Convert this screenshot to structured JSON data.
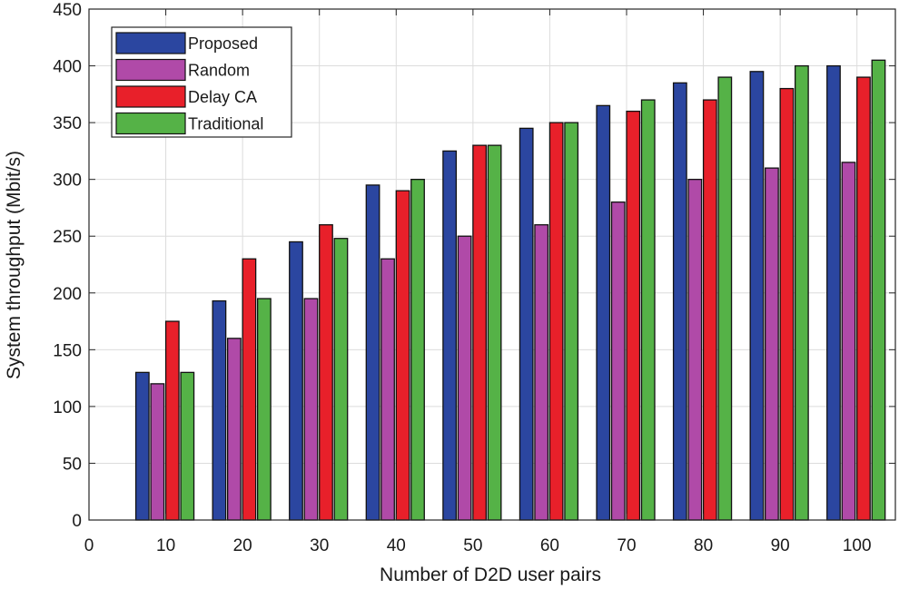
{
  "chart_data": {
    "type": "bar",
    "title": "",
    "xlabel": "Number of D2D user pairs",
    "ylabel": "System throughput (Mbit/s)",
    "categories": [
      "10",
      "20",
      "30",
      "40",
      "50",
      "60",
      "70",
      "80",
      "90",
      "100"
    ],
    "x_values": [
      10,
      20,
      30,
      40,
      50,
      60,
      70,
      80,
      90,
      100
    ],
    "xlim": [
      0,
      105
    ],
    "xticks": [
      "0",
      "10",
      "20",
      "30",
      "40",
      "50",
      "60",
      "70",
      "80",
      "90",
      "100"
    ],
    "ylim": [
      0,
      450
    ],
    "yticks": [
      "0",
      "50",
      "100",
      "150",
      "200",
      "250",
      "300",
      "350",
      "400",
      "450"
    ],
    "grid": true,
    "legend_position": "top-left",
    "series": [
      {
        "name": "Proposed",
        "color": "#2b46a0",
        "values": [
          130,
          193,
          245,
          295,
          325,
          345,
          365,
          385,
          395,
          400
        ]
      },
      {
        "name": "Random",
        "color": "#b04aa8",
        "values": [
          120,
          160,
          195,
          230,
          250,
          260,
          280,
          300,
          310,
          315
        ]
      },
      {
        "name": "Delay CA",
        "color": "#e8202a",
        "values": [
          175,
          230,
          260,
          290,
          330,
          350,
          360,
          370,
          380,
          390
        ]
      },
      {
        "name": "Traditional",
        "color": "#55b247",
        "values": [
          130,
          195,
          248,
          300,
          330,
          350,
          370,
          390,
          400,
          405
        ]
      }
    ]
  }
}
